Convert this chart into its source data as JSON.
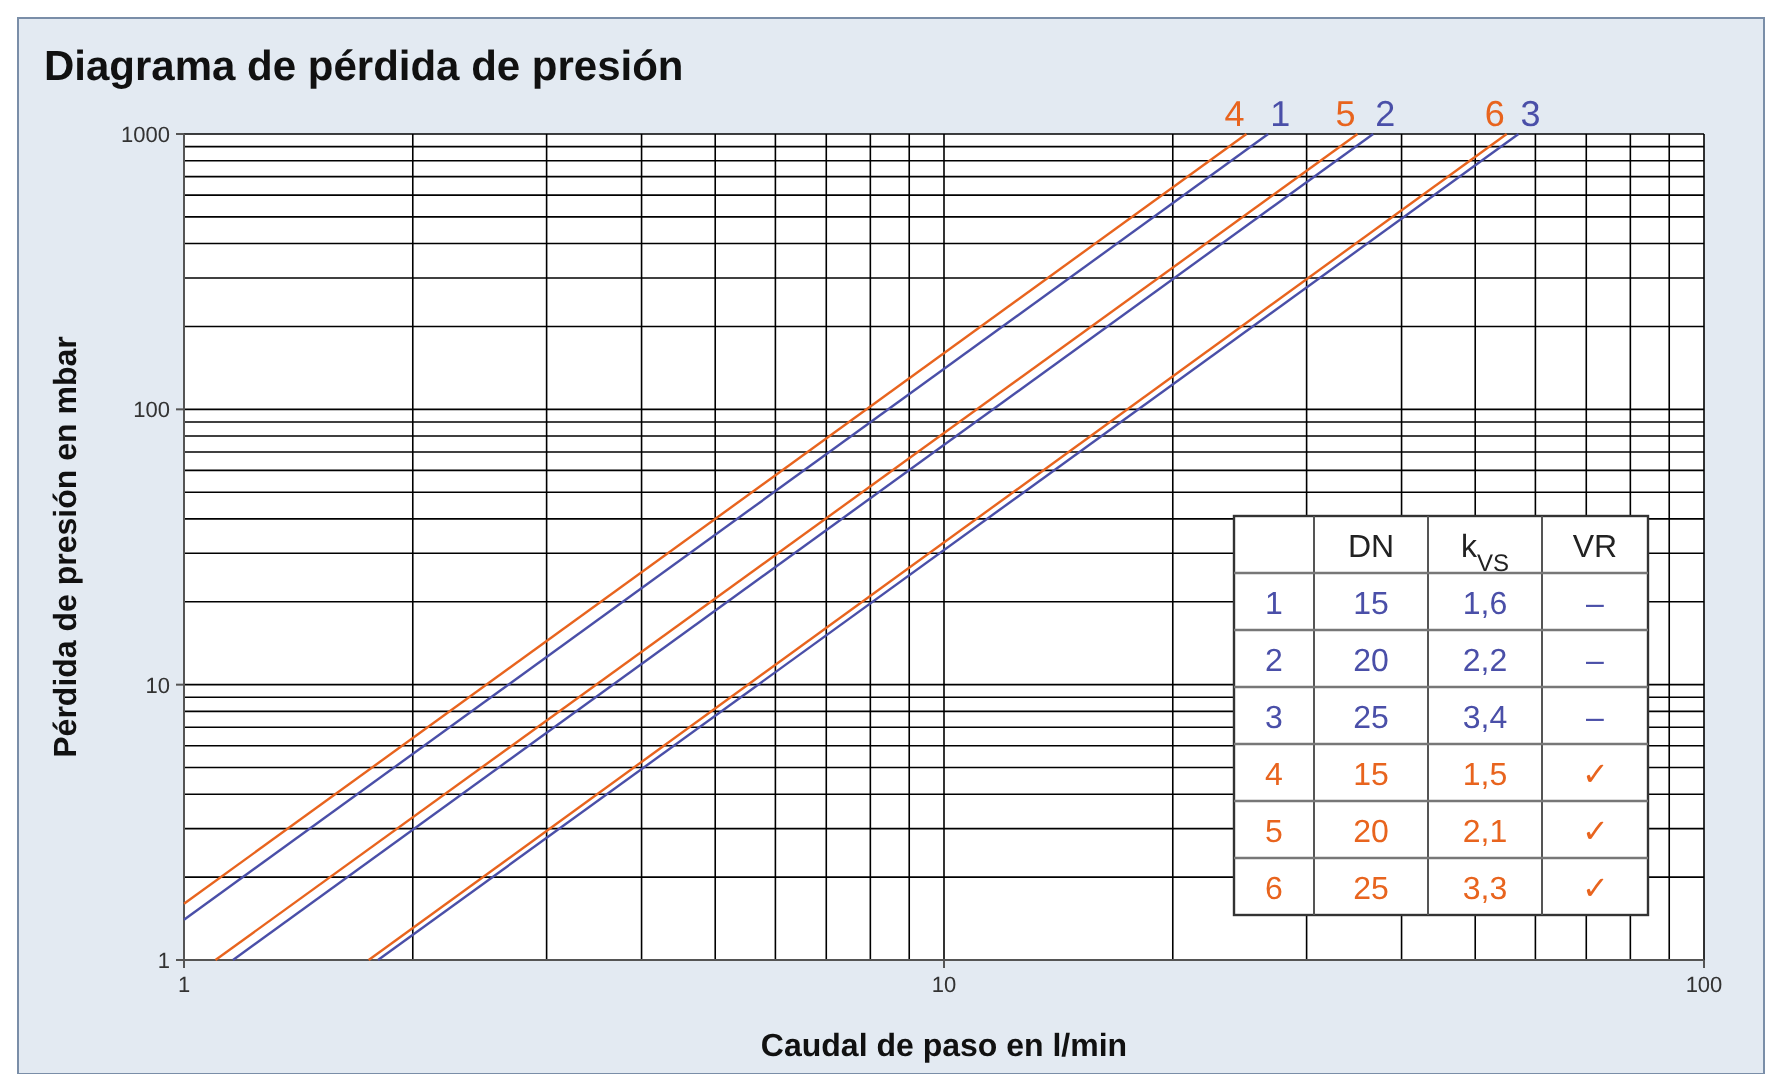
{
  "chart_data": {
    "type": "line",
    "title": "Diagrama de pérdida de presión",
    "xlabel": "Caudal de paso en l/min",
    "ylabel": "Pérdida de presión en mbar",
    "log": "xy",
    "grid": true,
    "xlim": [
      1,
      100
    ],
    "xticks": [
      1,
      10,
      100
    ],
    "ylim": [
      1,
      1000
    ],
    "yticks": [
      1,
      10,
      100,
      1000
    ],
    "series": [
      {
        "name": "1",
        "color": "#4a4fa8",
        "x": [
          1,
          26.7
        ],
        "values": [
          1.4,
          1000
        ]
      },
      {
        "name": "2",
        "color": "#4a4fa8",
        "x": [
          1.16,
          36.7
        ],
        "values": [
          1,
          1000
        ]
      },
      {
        "name": "3",
        "color": "#4a4fa8",
        "x": [
          1.8,
          57
        ],
        "values": [
          1,
          1000
        ]
      },
      {
        "name": "4",
        "color": "#e8641e",
        "x": [
          1,
          25
        ],
        "values": [
          1.6,
          1000
        ]
      },
      {
        "name": "5",
        "color": "#e8641e",
        "x": [
          1.1,
          35
        ],
        "values": [
          1,
          1000
        ]
      },
      {
        "name": "6",
        "color": "#e8641e",
        "x": [
          1.75,
          55
        ],
        "values": [
          1,
          1000
        ]
      }
    ],
    "annotations": [
      "DN",
      "k$_{VS}$",
      "VR",
      "1",
      "15",
      "1,6",
      "–",
      "2",
      "20",
      "2,2",
      "–",
      "3",
      "25",
      "3,4",
      "–",
      "4",
      "15",
      "1,5",
      "✓",
      "5",
      "20",
      "2,1",
      "✓",
      "6",
      "25",
      "3,3",
      "✓"
    ]
  }
}
